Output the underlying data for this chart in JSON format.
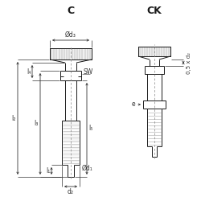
{
  "bg_color": "#ffffff",
  "line_color": "#1a1a1a",
  "dim_color": "#333333",
  "title_C": "C",
  "title_CK": "CK",
  "label_d3": "Ød₃",
  "label_d1": "Ød₁",
  "label_d2": "d₂",
  "label_l2": "l₂",
  "label_l4": "l₄",
  "label_l3": "l₃",
  "label_l1": "l₁",
  "label_l5": "l₅",
  "label_SW": "SW",
  "label_e": "e",
  "label_05d2": "0,5 x d₂",
  "font_size_title": 9,
  "font_size_label": 5.5,
  "fig_w": 2.5,
  "fig_h": 2.5,
  "dpi": 100
}
